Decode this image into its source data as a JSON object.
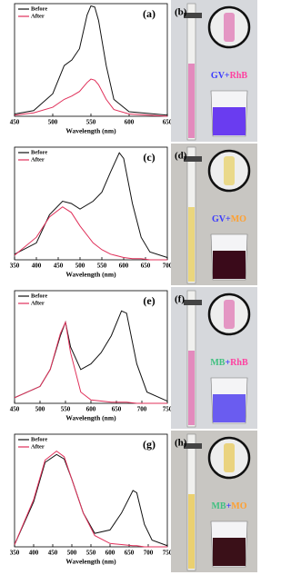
{
  "chart_data": [
    {
      "type": "line",
      "panel_label": "(a)",
      "x_label": "Wavelength (nm)",
      "legend": "top-left",
      "x": [
        450,
        475,
        500,
        515,
        525,
        535,
        545,
        550,
        555,
        560,
        570,
        580,
        600,
        650
      ],
      "xlim": [
        450,
        650
      ],
      "xticks": [
        450,
        500,
        550,
        600,
        650
      ],
      "ylim": [
        0,
        1
      ],
      "series": [
        {
          "name": "Before",
          "color": "#111111",
          "values": [
            0.02,
            0.05,
            0.2,
            0.45,
            0.5,
            0.6,
            0.9,
            0.98,
            0.97,
            0.85,
            0.45,
            0.15,
            0.04,
            0.01
          ]
        },
        {
          "name": "After",
          "color": "#e0305a",
          "values": [
            0.01,
            0.03,
            0.08,
            0.15,
            0.18,
            0.22,
            0.3,
            0.33,
            0.32,
            0.28,
            0.15,
            0.06,
            0.02,
            0.0
          ]
        }
      ]
    },
    {
      "type": "line",
      "panel_label": "(c)",
      "x_label": "Wavelength (nm)",
      "legend": "top-left",
      "x": [
        350,
        400,
        430,
        460,
        480,
        500,
        530,
        550,
        570,
        590,
        600,
        620,
        640,
        660,
        700
      ],
      "xlim": [
        350,
        700
      ],
      "xticks": [
        350,
        400,
        450,
        500,
        550,
        600,
        650,
        700
      ],
      "ylim": [
        0,
        1
      ],
      "series": [
        {
          "name": "Before",
          "color": "#111111",
          "values": [
            0.05,
            0.15,
            0.4,
            0.52,
            0.5,
            0.45,
            0.52,
            0.6,
            0.78,
            0.95,
            0.9,
            0.5,
            0.2,
            0.07,
            0.02
          ]
        },
        {
          "name": "After",
          "color": "#e0305a",
          "values": [
            0.04,
            0.2,
            0.38,
            0.47,
            0.42,
            0.3,
            0.15,
            0.09,
            0.05,
            0.03,
            0.02,
            0.01,
            0.01,
            0.0,
            0.0
          ]
        }
      ]
    },
    {
      "type": "line",
      "panel_label": "(e)",
      "x_label": "Wavelength (nm)",
      "legend": "top-left",
      "x": [
        450,
        500,
        520,
        540,
        550,
        560,
        580,
        600,
        620,
        640,
        660,
        670,
        690,
        710,
        750
      ],
      "xlim": [
        450,
        750
      ],
      "xticks": [
        450,
        500,
        550,
        600,
        650,
        700,
        750
      ],
      "ylim": [
        0,
        1
      ],
      "series": [
        {
          "name": "Before",
          "color": "#111111",
          "values": [
            0.05,
            0.15,
            0.3,
            0.6,
            0.72,
            0.5,
            0.3,
            0.35,
            0.45,
            0.6,
            0.82,
            0.8,
            0.35,
            0.1,
            0.02
          ]
        },
        {
          "name": "After",
          "color": "#e0305a",
          "values": [
            0.05,
            0.15,
            0.3,
            0.62,
            0.72,
            0.45,
            0.1,
            0.03,
            0.02,
            0.01,
            0.01,
            0.01,
            0.0,
            0.0,
            0.0
          ]
        }
      ]
    },
    {
      "type": "line",
      "panel_label": "(g)",
      "x_label": "Wavelength (nm)",
      "legend": "top-left",
      "x": [
        350,
        400,
        430,
        460,
        480,
        500,
        530,
        560,
        600,
        630,
        660,
        670,
        690,
        710,
        750
      ],
      "xlim": [
        350,
        750
      ],
      "xticks": [
        350,
        400,
        450,
        500,
        550,
        600,
        650,
        700,
        750
      ],
      "ylim": [
        0,
        1
      ],
      "series": [
        {
          "name": "Before",
          "color": "#111111",
          "values": [
            0.02,
            0.4,
            0.75,
            0.82,
            0.78,
            0.6,
            0.3,
            0.12,
            0.15,
            0.3,
            0.5,
            0.48,
            0.2,
            0.06,
            0.01
          ]
        },
        {
          "name": "After",
          "color": "#e0305a",
          "values": [
            0.02,
            0.42,
            0.77,
            0.85,
            0.8,
            0.6,
            0.3,
            0.1,
            0.03,
            0.02,
            0.01,
            0.01,
            0.0,
            0.0,
            0.0
          ]
        }
      ]
    }
  ],
  "photos": [
    {
      "label": "(b)",
      "dye1": "GV",
      "plus": "+",
      "dye2": "RhB"
    },
    {
      "label": "(d)",
      "dye1": "GV",
      "plus": "+",
      "dye2": "MO"
    },
    {
      "label": "(f)",
      "dye1": "MB",
      "plus": "+",
      "dye2": "RhB"
    },
    {
      "label": "(h)",
      "dye1": "MB",
      "plus": "+",
      "dye2": "MO"
    }
  ]
}
